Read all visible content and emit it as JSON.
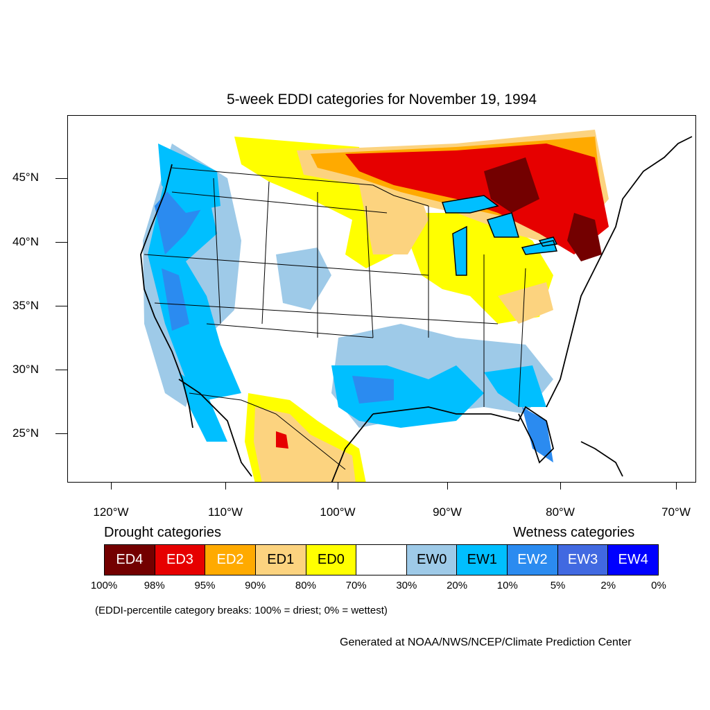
{
  "title": "5-week EDDI categories for November 19, 1994",
  "lat_labels": [
    "45°N",
    "40°N",
    "35°N",
    "30°N",
    "25°N"
  ],
  "lon_labels": [
    "120°W",
    "110°W",
    "100°W",
    "90°W",
    "80°W",
    "70°W"
  ],
  "legend": {
    "drought_heading": "Drought categories",
    "wetness_heading": "Wetness categories",
    "categories": [
      {
        "label": "ED4",
        "color": "#730000",
        "text_color": "#ffffff"
      },
      {
        "label": "ED3",
        "color": "#e60000",
        "text_color": "#ffffff"
      },
      {
        "label": "ED2",
        "color": "#ffaa00",
        "text_color": "#ffffff"
      },
      {
        "label": "ED1",
        "color": "#fcd37f",
        "text_color": "#000000"
      },
      {
        "label": "ED0",
        "color": "#ffff00",
        "text_color": "#000000"
      },
      {
        "label": "",
        "color": "#ffffff",
        "text_color": "#000000"
      },
      {
        "label": "EW0",
        "color": "#9ecae8",
        "text_color": "#000000"
      },
      {
        "label": "EW1",
        "color": "#00bfff",
        "text_color": "#000000"
      },
      {
        "label": "EW2",
        "color": "#2b8bf0",
        "text_color": "#ffffff"
      },
      {
        "label": "EW3",
        "color": "#4169e1",
        "text_color": "#ffffff"
      },
      {
        "label": "EW4",
        "color": "#0000ff",
        "text_color": "#ffffff"
      }
    ],
    "breaks": [
      "100%",
      "98%",
      "95%",
      "90%",
      "80%",
      "70%",
      "30%",
      "20%",
      "10%",
      "5%",
      "2%",
      "0%"
    ]
  },
  "note": "(EDDI-percentile category breaks: 100% = driest; 0% = wettest)",
  "credit": "Generated at NOAA/NWS/NCEP/Climate Prediction Center"
}
